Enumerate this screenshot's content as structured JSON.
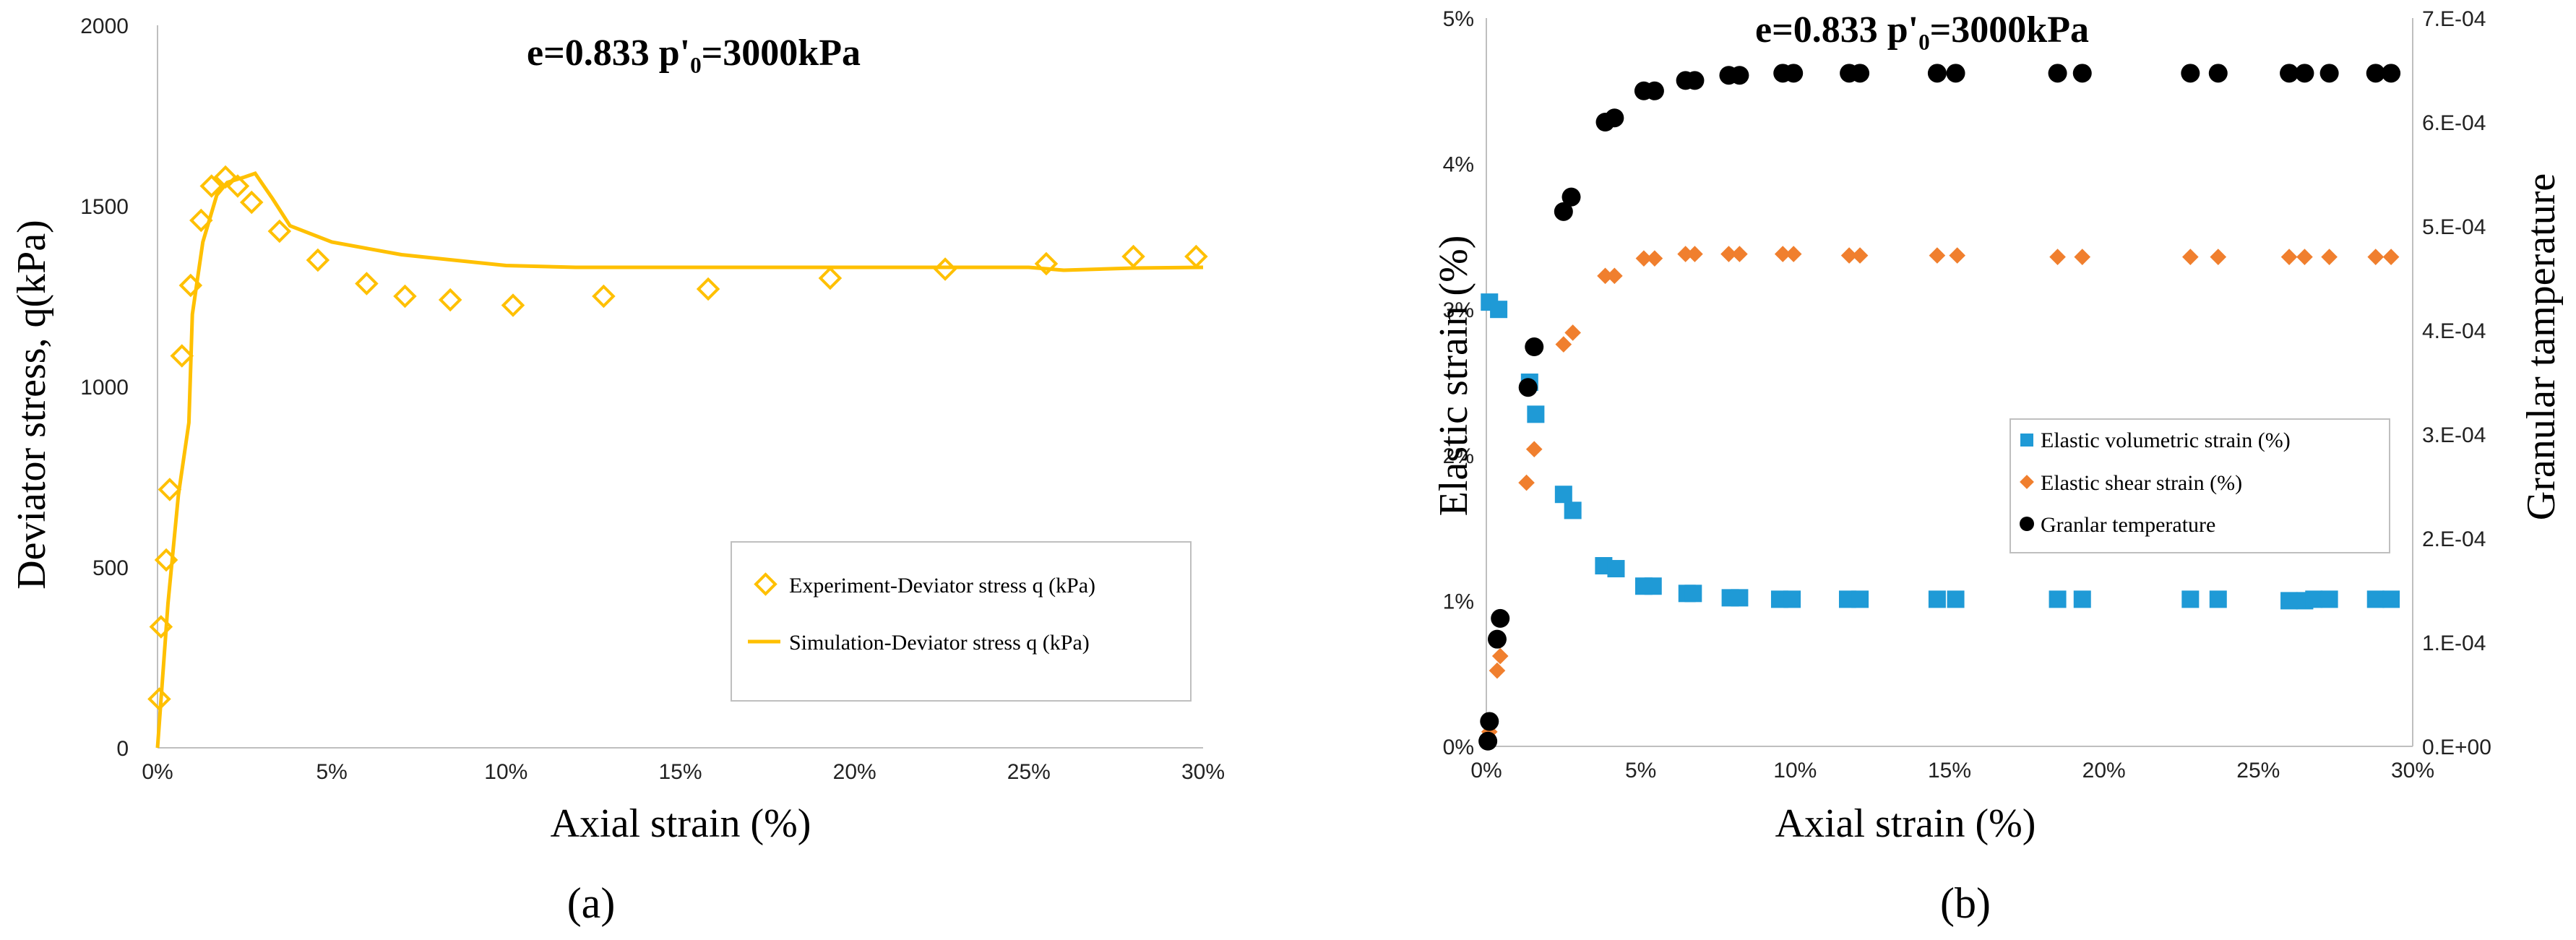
{
  "chart_data": [
    {
      "panel": "(a)",
      "type": "scatter",
      "title": "e=0.833  p'₀=3000kPa",
      "xlabel": "Axial strain  (%)",
      "ylabel": "Deviator stress,  q(kPa)",
      "xlim": [
        0,
        30
      ],
      "ylim": [
        0,
        2000
      ],
      "xticks": [
        "0%",
        "5%",
        "10%",
        "15%",
        "20%",
        "25%",
        "30%"
      ],
      "yticks": [
        "0",
        "500",
        "1000",
        "1500",
        "2000"
      ],
      "legend_position": "lower-right",
      "series": [
        {
          "name": "Experiment-Deviator stress q  (kPa)",
          "kind": "scatter",
          "marker": "diamond-open",
          "color": "#FFC000",
          "x": [
            0.05,
            0.1,
            0.25,
            0.35,
            0.7,
            0.95,
            1.25,
            1.55,
            1.95,
            2.3,
            2.7,
            3.5,
            4.6,
            6.0,
            7.1,
            8.4,
            10.2,
            12.8,
            15.8,
            19.3,
            22.6,
            25.5,
            28.0,
            29.8
          ],
          "y": [
            135,
            335,
            520,
            715,
            1085,
            1280,
            1460,
            1555,
            1580,
            1555,
            1510,
            1430,
            1350,
            1285,
            1250,
            1240,
            1225,
            1250,
            1270,
            1300,
            1325,
            1340,
            1360,
            1360
          ]
        },
        {
          "name": "Simulation-Deviator stress q  (kPa)",
          "kind": "line",
          "color": "#FFC000",
          "x": [
            0,
            0.3,
            0.6,
            0.9,
            1.0,
            1.3,
            1.7,
            2.0,
            2.5,
            2.8,
            3.3,
            3.8,
            5.0,
            7.0,
            10.0,
            12.0,
            15.0,
            20.0,
            25.0,
            26.0,
            28.0,
            30.0
          ],
          "y": [
            0,
            400,
            700,
            900,
            1200,
            1400,
            1530,
            1565,
            1580,
            1590,
            1520,
            1445,
            1400,
            1365,
            1335,
            1330,
            1330,
            1330,
            1330,
            1322,
            1328,
            1330
          ]
        }
      ]
    },
    {
      "panel": "(b)",
      "type": "scatter",
      "title": "e=0.833  p'₀=3000kPa",
      "xlabel": "Axial strain  (%)",
      "ylabel": "Elastic strain  (%)",
      "y2label": "Granular tamperature",
      "xlim": [
        0,
        30
      ],
      "ylim": [
        0,
        5
      ],
      "y2lim": [
        0,
        0.0007
      ],
      "xticks": [
        "0%",
        "5%",
        "10%",
        "15%",
        "20%",
        "25%",
        "30%"
      ],
      "yticks": [
        "0%",
        "1%",
        "2%",
        "3%",
        "4%",
        "5%"
      ],
      "y2ticks": [
        "0.E+00",
        "1.E-04",
        "2.E-04",
        "3.E-04",
        "4.E-04",
        "5.E-04",
        "6.E-04",
        "7.E-04"
      ],
      "legend_position": "center-right",
      "series": [
        {
          "name": "Elastic volumetric strain  (%)",
          "marker": "square",
          "color": "#1F9AD6",
          "axis": "left",
          "x": [
            0.1,
            0.4,
            1.4,
            1.6,
            2.5,
            2.8,
            3.8,
            4.2,
            5.1,
            5.4,
            6.5,
            6.7,
            7.9,
            8.2,
            9.5,
            9.9,
            11.7,
            12.1,
            14.6,
            15.2,
            18.5,
            19.3,
            22.8,
            23.7,
            26.0,
            26.5,
            26.8,
            27.3,
            28.8,
            29.3
          ],
          "y": [
            3.05,
            3.0,
            2.5,
            2.28,
            1.73,
            1.62,
            1.24,
            1.22,
            1.1,
            1.1,
            1.05,
            1.05,
            1.02,
            1.02,
            1.01,
            1.01,
            1.01,
            1.01,
            1.01,
            1.01,
            1.01,
            1.01,
            1.01,
            1.01,
            1.0,
            1.0,
            1.01,
            1.01,
            1.01,
            1.01
          ]
        },
        {
          "name": "Elastic shear strain  (%)",
          "marker": "diamond",
          "color": "#F07F2E",
          "axis": "left",
          "x": [
            0.05,
            0.1,
            0.35,
            0.45,
            1.3,
            1.55,
            2.5,
            2.8,
            3.85,
            4.15,
            5.1,
            5.45,
            6.45,
            6.75,
            7.85,
            8.2,
            9.6,
            9.95,
            11.75,
            12.1,
            14.6,
            15.25,
            18.5,
            19.3,
            22.8,
            23.7,
            26.0,
            26.5,
            27.3,
            28.8,
            29.3
          ],
          "y": [
            0.03,
            0.1,
            0.52,
            0.62,
            1.81,
            2.04,
            2.76,
            2.84,
            3.23,
            3.23,
            3.35,
            3.35,
            3.38,
            3.38,
            3.38,
            3.38,
            3.38,
            3.38,
            3.37,
            3.37,
            3.37,
            3.37,
            3.36,
            3.36,
            3.36,
            3.36,
            3.36,
            3.36,
            3.36,
            3.36,
            3.36
          ]
        },
        {
          "name": "Granlar temperature",
          "marker": "circle",
          "color": "#000000",
          "axis": "right",
          "x": [
            0.05,
            0.1,
            0.35,
            0.45,
            1.35,
            1.55,
            2.5,
            2.75,
            3.85,
            4.15,
            5.1,
            5.45,
            6.45,
            6.75,
            7.85,
            8.2,
            9.6,
            9.95,
            11.75,
            12.1,
            14.6,
            15.2,
            18.5,
            19.3,
            22.8,
            23.7,
            26.0,
            26.5,
            27.3,
            28.8,
            29.3
          ],
          "y": [
            5e-06,
            2.4e-05,
            0.000103,
            0.000123,
            0.000345,
            0.000384,
            0.000514,
            0.000528,
            0.0006,
            0.000604,
            0.00063,
            0.00063,
            0.00064,
            0.00064,
            0.000645,
            0.000645,
            0.000647,
            0.000647,
            0.000647,
            0.000647,
            0.000647,
            0.000647,
            0.000647,
            0.000647,
            0.000647,
            0.000647,
            0.000647,
            0.000647,
            0.000647,
            0.000647,
            0.000647
          ]
        }
      ]
    }
  ]
}
